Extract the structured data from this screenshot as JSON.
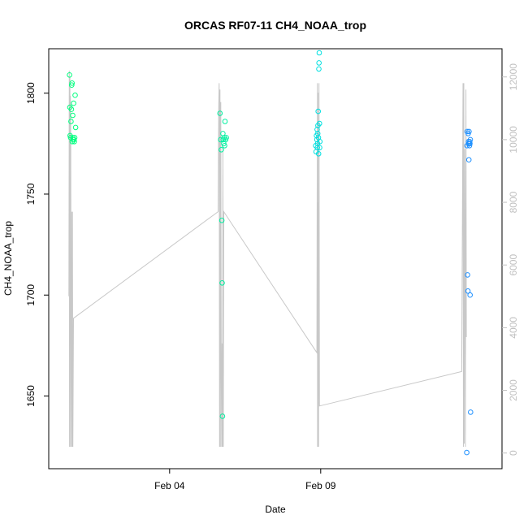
{
  "chart_data": {
    "type": "scatter",
    "title": "ORCAS RF07-11 CH4_NOAA_trop",
    "xlabel": "Date",
    "ylabel": "CH4_NOAA_trop",
    "x_is_date": true,
    "xlim": [
      "2016-01-31",
      "2016-02-15"
    ],
    "ylim": [
      1614,
      1822
    ],
    "y_ticks": [
      1650,
      1700,
      1750,
      1800
    ],
    "x_ticks": [
      {
        "date": "2016-02-04",
        "label": "Feb 04"
      },
      {
        "date": "2016-02-09",
        "label": "Feb 09"
      }
    ],
    "y2_ticks": [
      0,
      2000,
      4000,
      6000,
      8000,
      10000,
      12000
    ],
    "y2lim": [
      -500,
      12900
    ],
    "grid": false,
    "points": [
      {
        "x": "2016-01-31T16:30",
        "y": 1809,
        "color": "#00ff7f"
      },
      {
        "x": "2016-01-31T16:45",
        "y": 1793,
        "color": "#00ff7f"
      },
      {
        "x": "2016-01-31T17:00",
        "y": 1779,
        "color": "#00ff7f"
      },
      {
        "x": "2016-01-31T17:20",
        "y": 1778,
        "color": "#00ff7f"
      },
      {
        "x": "2016-01-31T17:40",
        "y": 1786,
        "color": "#00ff7f"
      },
      {
        "x": "2016-01-31T18:00",
        "y": 1792,
        "color": "#00ff7f"
      },
      {
        "x": "2016-01-31T18:15",
        "y": 1804,
        "color": "#00ff7f"
      },
      {
        "x": "2016-01-31T18:30",
        "y": 1805,
        "color": "#00ff7f"
      },
      {
        "x": "2016-01-31T18:40",
        "y": 1776,
        "color": "#00ff7f"
      },
      {
        "x": "2016-01-31T19:00",
        "y": 1789,
        "color": "#00ff7f"
      },
      {
        "x": "2016-01-31T19:15",
        "y": 1778,
        "color": "#00ff7f"
      },
      {
        "x": "2016-01-31T19:30",
        "y": 1777,
        "color": "#00ff7f"
      },
      {
        "x": "2016-01-31T19:45",
        "y": 1795,
        "color": "#00ff7f"
      },
      {
        "x": "2016-01-31T20:00",
        "y": 1777,
        "color": "#00ff7f"
      },
      {
        "x": "2016-01-31T20:20",
        "y": 1776,
        "color": "#00ff7f"
      },
      {
        "x": "2016-01-31T20:40",
        "y": 1778,
        "color": "#00ff7f"
      },
      {
        "x": "2016-01-31T21:00",
        "y": 1799,
        "color": "#00ff7f"
      },
      {
        "x": "2016-01-31T21:20",
        "y": 1783,
        "color": "#00ff7f"
      },
      {
        "x": "2016-02-05T16:00",
        "y": 1790,
        "color": "#00f0a0"
      },
      {
        "x": "2016-02-05T16:30",
        "y": 1777,
        "color": "#00f0a0"
      },
      {
        "x": "2016-02-05T17:00",
        "y": 1772,
        "color": "#00f0a0"
      },
      {
        "x": "2016-02-05T17:30",
        "y": 1737,
        "color": "#00f0a0"
      },
      {
        "x": "2016-02-05T17:45",
        "y": 1706,
        "color": "#00f0a0"
      },
      {
        "x": "2016-02-05T18:00",
        "y": 1640,
        "color": "#00f0a0"
      },
      {
        "x": "2016-02-05T18:20",
        "y": 1780,
        "color": "#00f0a0"
      },
      {
        "x": "2016-02-05T18:40",
        "y": 1777,
        "color": "#00f0a0"
      },
      {
        "x": "2016-02-05T19:00",
        "y": 1775,
        "color": "#00f0a0"
      },
      {
        "x": "2016-02-05T19:20",
        "y": 1778,
        "color": "#00f0a0"
      },
      {
        "x": "2016-02-05T19:40",
        "y": 1774,
        "color": "#00f0a0"
      },
      {
        "x": "2016-02-05T20:00",
        "y": 1786,
        "color": "#00f0a0"
      },
      {
        "x": "2016-02-05T20:30",
        "y": 1777,
        "color": "#00f0a0"
      },
      {
        "x": "2016-02-05T21:00",
        "y": 1778,
        "color": "#00f0a0"
      },
      {
        "x": "2016-02-08T20:00",
        "y": 1774,
        "color": "#00e0e0"
      },
      {
        "x": "2016-02-08T20:20",
        "y": 1771,
        "color": "#00e0e0"
      },
      {
        "x": "2016-02-08T20:40",
        "y": 1779,
        "color": "#00e0e0"
      },
      {
        "x": "2016-02-08T21:00",
        "y": 1777,
        "color": "#00e0e0"
      },
      {
        "x": "2016-02-08T21:10",
        "y": 1782,
        "color": "#00e0e0"
      },
      {
        "x": "2016-02-08T21:20",
        "y": 1773,
        "color": "#00e0e0"
      },
      {
        "x": "2016-02-08T21:30",
        "y": 1775,
        "color": "#00e0e0"
      },
      {
        "x": "2016-02-08T21:40",
        "y": 1780,
        "color": "#00e0e0"
      },
      {
        "x": "2016-02-08T21:50",
        "y": 1784,
        "color": "#00e0e0"
      },
      {
        "x": "2016-02-08T22:00",
        "y": 1791,
        "color": "#00e0e0"
      },
      {
        "x": "2016-02-08T22:10",
        "y": 1778,
        "color": "#00e0e0"
      },
      {
        "x": "2016-02-08T22:20",
        "y": 1770,
        "color": "#00e0e0"
      },
      {
        "x": "2016-02-08T22:30",
        "y": 1812,
        "color": "#00e0e0"
      },
      {
        "x": "2016-02-08T22:40",
        "y": 1815,
        "color": "#00e0e0"
      },
      {
        "x": "2016-02-08T22:50",
        "y": 1820,
        "color": "#00e0e0"
      },
      {
        "x": "2016-02-08T23:00",
        "y": 1785,
        "color": "#00e0e0"
      },
      {
        "x": "2016-02-08T23:10",
        "y": 1773,
        "color": "#00e0e0"
      },
      {
        "x": "2016-02-08T23:20",
        "y": 1776,
        "color": "#00e0e0"
      },
      {
        "x": "2016-02-13T20:00",
        "y": 1622,
        "color": "#1e90ff"
      },
      {
        "x": "2016-02-13T20:10",
        "y": 1774,
        "color": "#1e90ff"
      },
      {
        "x": "2016-02-13T20:20",
        "y": 1781,
        "color": "#1e90ff"
      },
      {
        "x": "2016-02-13T20:40",
        "y": 1710,
        "color": "#1e90ff"
      },
      {
        "x": "2016-02-13T21:00",
        "y": 1702,
        "color": "#1e90ff"
      },
      {
        "x": "2016-02-13T21:10",
        "y": 1780,
        "color": "#1e90ff"
      },
      {
        "x": "2016-02-13T21:20",
        "y": 1776,
        "color": "#1e90ff"
      },
      {
        "x": "2016-02-13T21:30",
        "y": 1775,
        "color": "#1e90ff"
      },
      {
        "x": "2016-02-13T21:40",
        "y": 1767,
        "color": "#1e90ff"
      },
      {
        "x": "2016-02-13T21:50",
        "y": 1781,
        "color": "#1e90ff"
      },
      {
        "x": "2016-02-13T22:00",
        "y": 1775,
        "color": "#1e90ff"
      },
      {
        "x": "2016-02-13T22:10",
        "y": 1774,
        "color": "#1e90ff"
      },
      {
        "x": "2016-02-13T22:20",
        "y": 1776,
        "color": "#1e90ff"
      },
      {
        "x": "2016-02-13T22:30",
        "y": 1775,
        "color": "#1e90ff"
      },
      {
        "x": "2016-02-13T22:40",
        "y": 1700,
        "color": "#1e90ff"
      },
      {
        "x": "2016-02-13T22:50",
        "y": 1777,
        "color": "#1e90ff"
      },
      {
        "x": "2016-02-13T23:00",
        "y": 1642,
        "color": "#1e90ff"
      }
    ],
    "altitude_line": {
      "color": "#c8c8c8",
      "points": [
        [
          "2016-01-31T16:00",
          5000
        ],
        [
          "2016-01-31T16:20",
          12200
        ],
        [
          "2016-01-31T16:30",
          200
        ],
        [
          "2016-01-31T16:50",
          12000
        ],
        [
          "2016-01-31T17:00",
          200
        ],
        [
          "2016-01-31T17:15",
          11400
        ],
        [
          "2016-01-31T17:30",
          10000
        ],
        [
          "2016-01-31T17:45",
          2200
        ],
        [
          "2016-01-31T18:00",
          200
        ],
        [
          "2016-01-31T18:20",
          7700
        ],
        [
          "2016-01-31T18:35",
          200
        ],
        [
          "2016-01-31T18:50",
          7700
        ],
        [
          "2016-01-31T19:10",
          200
        ],
        [
          "2016-01-31T19:40",
          4300
        ],
        [
          "2016-02-05T14:30",
          7700
        ],
        [
          "2016-02-05T15:00",
          11100
        ],
        [
          "2016-02-05T15:20",
          11800
        ],
        [
          "2016-02-05T15:40",
          200
        ],
        [
          "2016-02-05T16:00",
          11600
        ],
        [
          "2016-02-05T16:20",
          200
        ],
        [
          "2016-02-05T16:40",
          11200
        ],
        [
          "2016-02-05T17:00",
          2400
        ],
        [
          "2016-02-05T17:20",
          200
        ],
        [
          "2016-02-05T17:40",
          3500
        ],
        [
          "2016-02-05T18:00",
          200
        ],
        [
          "2016-02-05T18:20",
          9800
        ],
        [
          "2016-02-05T18:40",
          200
        ],
        [
          "2016-02-05T19:00",
          7700
        ],
        [
          "2016-02-08T21:00",
          3200
        ],
        [
          "2016-02-08T21:20",
          11800
        ],
        [
          "2016-02-08T21:30",
          200
        ],
        [
          "2016-02-08T21:50",
          8000
        ],
        [
          "2016-02-08T22:00",
          200
        ],
        [
          "2016-02-08T22:10",
          11500
        ],
        [
          "2016-02-08T22:20",
          200
        ],
        [
          "2016-02-08T22:40",
          11800
        ],
        [
          "2016-02-08T23:00",
          1500
        ],
        [
          "2016-02-13T16:00",
          2600
        ],
        [
          "2016-02-13T17:00",
          11800
        ],
        [
          "2016-02-13T17:20",
          200
        ],
        [
          "2016-02-13T17:40",
          11800
        ],
        [
          "2016-02-13T18:00",
          300
        ],
        [
          "2016-02-13T18:20",
          9700
        ],
        [
          "2016-02-13T18:40",
          6700
        ],
        [
          "2016-02-13T19:00",
          200
        ],
        [
          "2016-02-13T19:20",
          11600
        ],
        [
          "2016-02-13T19:40",
          3700
        ]
      ]
    }
  }
}
